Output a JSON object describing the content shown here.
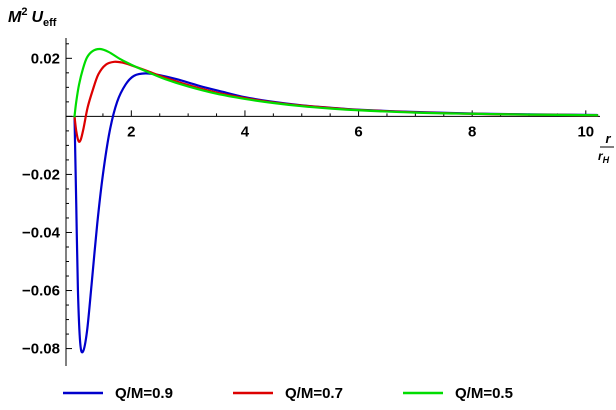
{
  "chart_data": {
    "type": "line",
    "ylabel": {
      "main": "M",
      "sup": "2",
      "sym": "U",
      "sub": "eff"
    },
    "xlabel": {
      "num": "r",
      "den_main": "r",
      "den_sub": "H"
    },
    "xlim": [
      0.85,
      10.25
    ],
    "ylim": [
      -0.086,
      0.027
    ],
    "x_ticks": [
      {
        "value": 2,
        "label": "2"
      },
      {
        "value": 4,
        "label": "4"
      },
      {
        "value": 6,
        "label": "6"
      },
      {
        "value": 8,
        "label": "8"
      },
      {
        "value": 10,
        "label": "10"
      }
    ],
    "y_ticks": [
      {
        "value": 0.02,
        "label": "0.02"
      },
      {
        "value": -0.02,
        "label": "−0.02"
      },
      {
        "value": -0.04,
        "label": "−0.04"
      },
      {
        "value": -0.06,
        "label": "−0.06"
      },
      {
        "value": -0.08,
        "label": "−0.08"
      }
    ],
    "legend_position": "bottom",
    "series": [
      {
        "name": "Q/M=0.9",
        "color": "#0000cc",
        "points": [
          [
            1.0,
            0.0
          ],
          [
            1.03,
            -0.03
          ],
          [
            1.06,
            -0.06
          ],
          [
            1.1,
            -0.078
          ],
          [
            1.15,
            -0.081
          ],
          [
            1.22,
            -0.074
          ],
          [
            1.3,
            -0.058
          ],
          [
            1.4,
            -0.037
          ],
          [
            1.5,
            -0.02
          ],
          [
            1.62,
            -0.005
          ],
          [
            1.75,
            0.005
          ],
          [
            1.9,
            0.011
          ],
          [
            2.05,
            0.014
          ],
          [
            2.25,
            0.0148
          ],
          [
            2.5,
            0.0142
          ],
          [
            2.8,
            0.0128
          ],
          [
            3.2,
            0.0105
          ],
          [
            3.6,
            0.0085
          ],
          [
            4.0,
            0.0066
          ],
          [
            4.5,
            0.005
          ],
          [
            5.0,
            0.0038
          ],
          [
            5.5,
            0.003
          ],
          [
            6.0,
            0.0023
          ],
          [
            7.0,
            0.0015
          ],
          [
            8.0,
            0.001
          ],
          [
            9.0,
            0.0007
          ],
          [
            10.2,
            0.0005
          ]
        ]
      },
      {
        "name": "Q/M=0.7",
        "color": "#dd0000",
        "points": [
          [
            1.0,
            0.0
          ],
          [
            1.03,
            -0.005
          ],
          [
            1.07,
            -0.0085
          ],
          [
            1.11,
            -0.008
          ],
          [
            1.16,
            -0.004
          ],
          [
            1.23,
            0.003
          ],
          [
            1.32,
            0.009
          ],
          [
            1.42,
            0.0145
          ],
          [
            1.55,
            0.0178
          ],
          [
            1.7,
            0.0188
          ],
          [
            1.85,
            0.0185
          ],
          [
            2.0,
            0.0176
          ],
          [
            2.3,
            0.0155
          ],
          [
            2.6,
            0.0133
          ],
          [
            3.0,
            0.0108
          ],
          [
            3.5,
            0.0082
          ],
          [
            4.0,
            0.0063
          ],
          [
            4.5,
            0.0048
          ],
          [
            5.0,
            0.0037
          ],
          [
            5.5,
            0.0029
          ],
          [
            6.0,
            0.0022
          ],
          [
            7.0,
            0.0014
          ],
          [
            8.0,
            0.0009
          ],
          [
            9.0,
            0.0006
          ],
          [
            10.2,
            0.0004
          ]
        ]
      },
      {
        "name": "Q/M=0.5",
        "color": "#00dd00",
        "points": [
          [
            1.0,
            0.0
          ],
          [
            1.03,
            0.005
          ],
          [
            1.08,
            0.011
          ],
          [
            1.15,
            0.0165
          ],
          [
            1.22,
            0.0203
          ],
          [
            1.32,
            0.0225
          ],
          [
            1.45,
            0.0232
          ],
          [
            1.6,
            0.0222
          ],
          [
            1.8,
            0.0198
          ],
          [
            2.0,
            0.0178
          ],
          [
            2.3,
            0.0152
          ],
          [
            2.6,
            0.0128
          ],
          [
            3.0,
            0.0103
          ],
          [
            3.5,
            0.0078
          ],
          [
            4.0,
            0.006
          ],
          [
            4.5,
            0.0046
          ],
          [
            5.0,
            0.0035
          ],
          [
            5.5,
            0.0027
          ],
          [
            6.0,
            0.0021
          ],
          [
            7.0,
            0.0013
          ],
          [
            8.0,
            0.0009
          ],
          [
            9.0,
            0.0006
          ],
          [
            10.2,
            0.0004
          ]
        ]
      }
    ]
  }
}
